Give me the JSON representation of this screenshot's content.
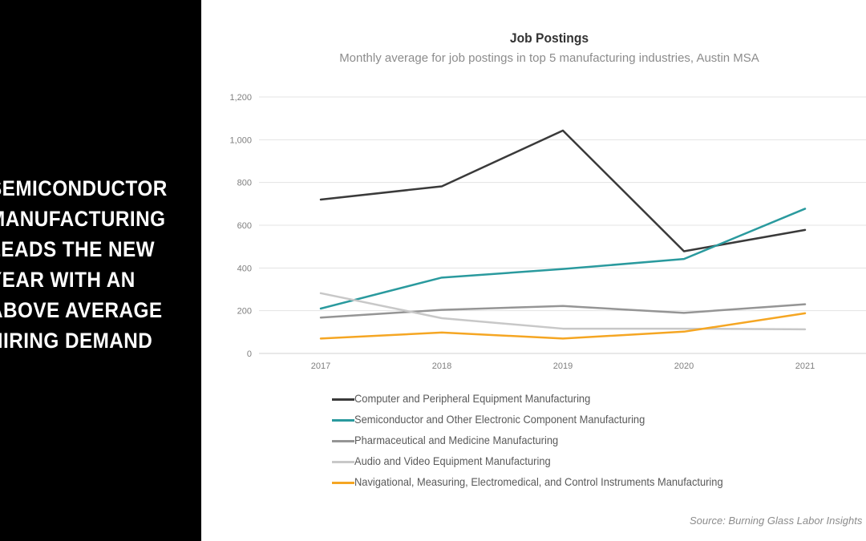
{
  "headline": {
    "lines": [
      "SEMICONDUCTOR",
      "MANUFACTURING",
      "LEADS THE NEW",
      "YEAR WITH AN",
      "ABOVE AVERAGE",
      "HIRING DEMAND"
    ]
  },
  "source": "Source: Burning Glass Labor Insights",
  "chart_data": {
    "type": "line",
    "title": "Job Postings",
    "subtitle": "Monthly average for job postings in  top 5 manufacturing industries, Austin MSA",
    "categories": [
      "2017",
      "2018",
      "2019",
      "2020",
      "2021"
    ],
    "y_ticks": [
      "0",
      "200",
      "400",
      "600",
      "800",
      "1,000",
      "1,200"
    ],
    "ylim": [
      0,
      1200
    ],
    "grid": true,
    "legend_position": "bottom",
    "series": [
      {
        "name": "Computer and Peripheral Equipment Manufacturing",
        "color": "#3a3a3a",
        "values": [
          720,
          782,
          1043,
          478,
          578
        ]
      },
      {
        "name": "Semiconductor and Other Electronic Component Manufacturing",
        "color": "#2a9a9e",
        "values": [
          210,
          355,
          395,
          442,
          677
        ]
      },
      {
        "name": "Pharmaceutical and Medicine Manufacturing",
        "color": "#959595",
        "values": [
          168,
          204,
          222,
          190,
          230
        ]
      },
      {
        "name": "Audio and Video Equipment Manufacturing",
        "color": "#c8c8c8",
        "values": [
          282,
          165,
          116,
          116,
          113
        ]
      },
      {
        "name": "Navigational, Measuring, Electromedical, and Control Instruments Manufacturing",
        "color": "#f5a623",
        "values": [
          70,
          98,
          70,
          102,
          188
        ]
      }
    ]
  }
}
